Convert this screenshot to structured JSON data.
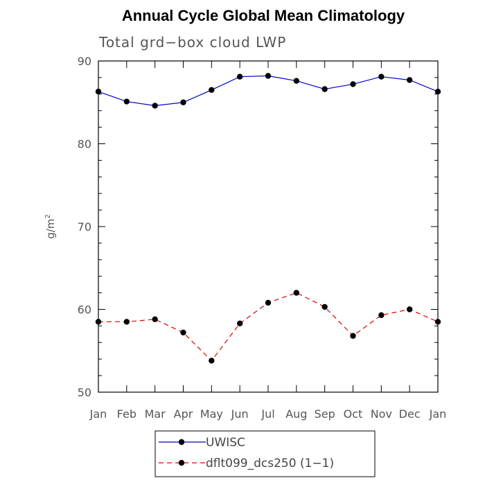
{
  "chart_data": {
    "type": "line",
    "title": "Annual Cycle Global Mean Climatology",
    "subtitle": "Total grd−box cloud LWP",
    "xlabel": "",
    "ylabel": "g/m",
    "ylabel_superscript": "2",
    "ylim": [
      50,
      90
    ],
    "yticks": [
      "50",
      "60",
      "70",
      "80",
      "90"
    ],
    "categories": [
      "Jan",
      "Feb",
      "Mar",
      "Apr",
      "May",
      "Jun",
      "Jul",
      "Aug",
      "Sep",
      "Oct",
      "Nov",
      "Dec",
      "Jan"
    ],
    "series": [
      {
        "name": "UWISC",
        "color": "#0000cc",
        "dash": "solid",
        "values": [
          86.3,
          85.1,
          84.6,
          85.0,
          86.5,
          88.1,
          88.2,
          87.6,
          86.6,
          87.2,
          88.1,
          87.7,
          86.3
        ]
      },
      {
        "name": "dflt099_dcs250 (1−1)",
        "color": "#dd0000",
        "dash": "dashed",
        "values": [
          58.5,
          58.5,
          58.8,
          57.2,
          53.8,
          58.3,
          60.8,
          62.0,
          60.3,
          56.8,
          59.3,
          60.0,
          58.5
        ]
      }
    ],
    "legend_position": "bottom-center"
  }
}
